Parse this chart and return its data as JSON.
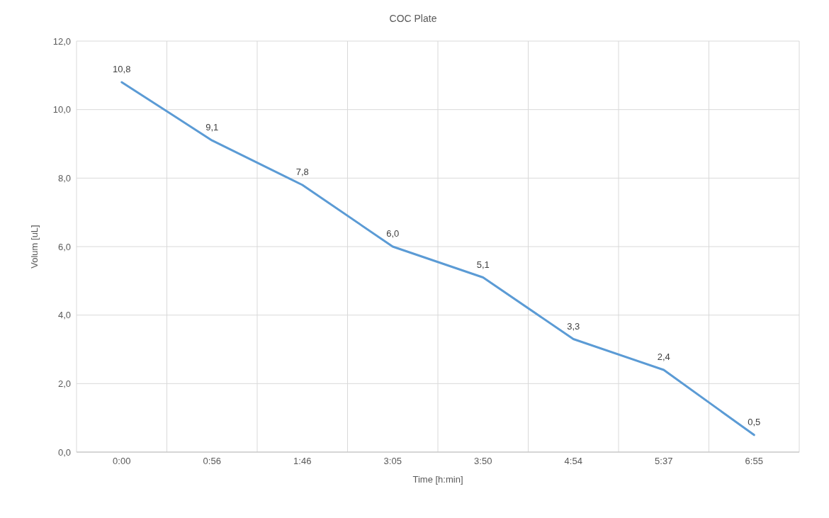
{
  "chart_data": {
    "type": "line",
    "title": "COC Plate",
    "xlabel": "Time [h:min]",
    "ylabel": "Volum [uL]",
    "categories": [
      "0:00",
      "0:56",
      "1:46",
      "3:05",
      "3:50",
      "4:54",
      "5:37",
      "6:55"
    ],
    "series": [
      {
        "color": "#5b9bd5",
        "values": [
          10.8,
          9.1,
          7.8,
          6.0,
          5.1,
          3.3,
          2.4,
          0.5
        ],
        "value_labels": [
          "10,8",
          "9,1",
          "7,8",
          "6,0",
          "5,1",
          "3,3",
          "2,4",
          "0,5"
        ]
      }
    ],
    "ylim": [
      0,
      12
    ],
    "yticks": [
      {
        "value": 0,
        "label": "0,0"
      },
      {
        "value": 2,
        "label": "2,0"
      },
      {
        "value": 4,
        "label": "4,0"
      },
      {
        "value": 6,
        "label": "6,0"
      },
      {
        "value": 8,
        "label": "8,0"
      },
      {
        "value": 10,
        "label": "10,0"
      },
      {
        "value": 12,
        "label": "12,0"
      }
    ],
    "grid": true,
    "marker": "none"
  }
}
